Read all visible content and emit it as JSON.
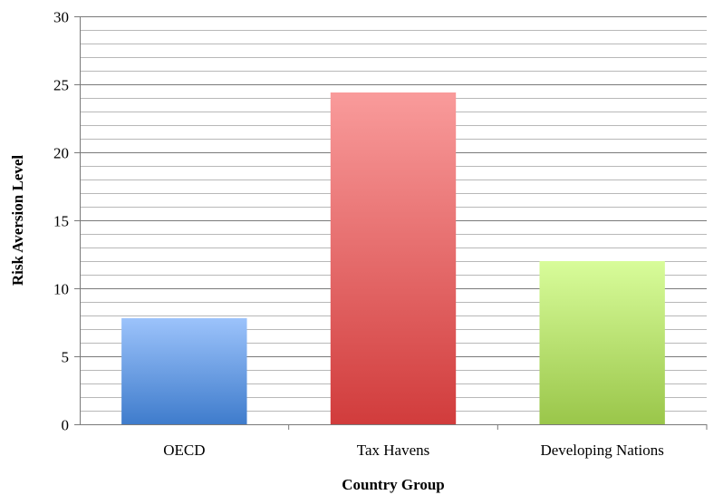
{
  "chart_data": {
    "type": "bar",
    "title": "",
    "xlabel": "Country Group",
    "ylabel": "Risk Aversion Level",
    "categories": [
      "OECD",
      "Tax Havens",
      "Developing Nations"
    ],
    "values": [
      7.8,
      24.4,
      12.0
    ],
    "ylim": [
      0,
      30
    ],
    "yticks": [
      0,
      5,
      10,
      15,
      20,
      25,
      30
    ],
    "minor_grid_step": 1,
    "grid": true,
    "legend": "none",
    "colors": [
      {
        "top": "#9cc3fb",
        "bottom": "#3f7ccc"
      },
      {
        "top": "#f99b9b",
        "bottom": "#d13c3c"
      },
      {
        "top": "#d8fc9a",
        "bottom": "#9ac64a"
      }
    ]
  }
}
